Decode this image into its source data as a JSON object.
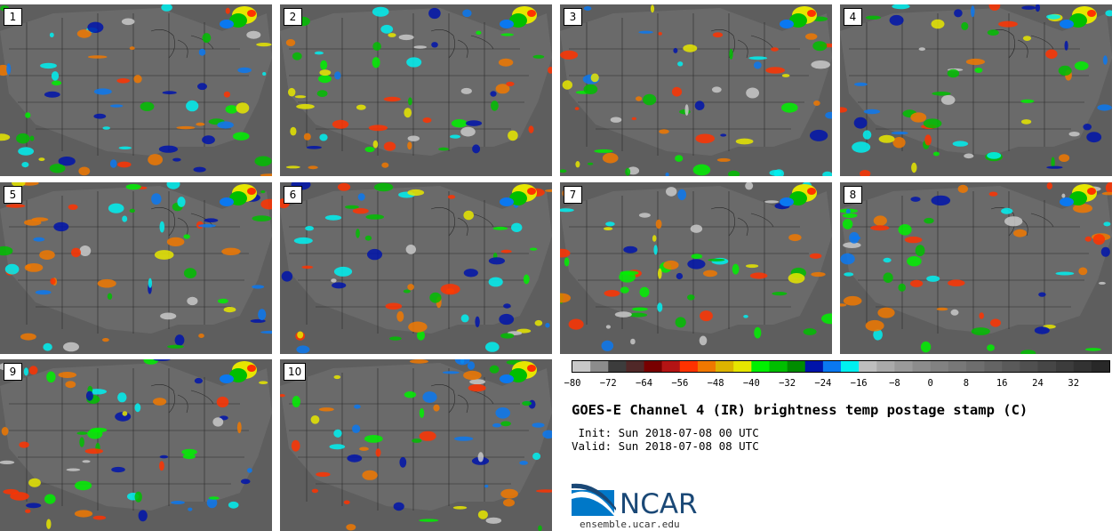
{
  "panels": [
    "1",
    "2",
    "3",
    "4",
    "5",
    "6",
    "7",
    "8",
    "9",
    "10"
  ],
  "colorbar": {
    "colors": [
      "#c8c8c8",
      "#8c8c8c",
      "#3c3c3c",
      "#502828",
      "#780000",
      "#b41414",
      "#ff3200",
      "#f07800",
      "#dcb400",
      "#e6e600",
      "#00f000",
      "#00be00",
      "#008c00",
      "#0014aa",
      "#0a78f0",
      "#00f0f0",
      "#bebebe",
      "#aaaaaa",
      "#9a9a9a",
      "#8c8c8c",
      "#828282",
      "#787878",
      "#6e6e6e",
      "#646464",
      "#5a5a5a",
      "#505050",
      "#464646",
      "#3c3c3c",
      "#323232",
      "#282828"
    ],
    "ticks": [
      "−80",
      "−72",
      "−64",
      "−56",
      "−48",
      "−40",
      "−32",
      "−24",
      "−16",
      "−8",
      "0",
      "8",
      "16",
      "24",
      "32"
    ]
  },
  "title": "GOES-E Channel 4 (IR) brightness temp postage stamp (C)",
  "init": " Init: Sun 2018-07-08 00 UTC",
  "valid": "Valid: Sun 2018-07-08 08 UTC",
  "logo": {
    "word": "NCAR",
    "site": "ensemble.ucar.edu"
  }
}
